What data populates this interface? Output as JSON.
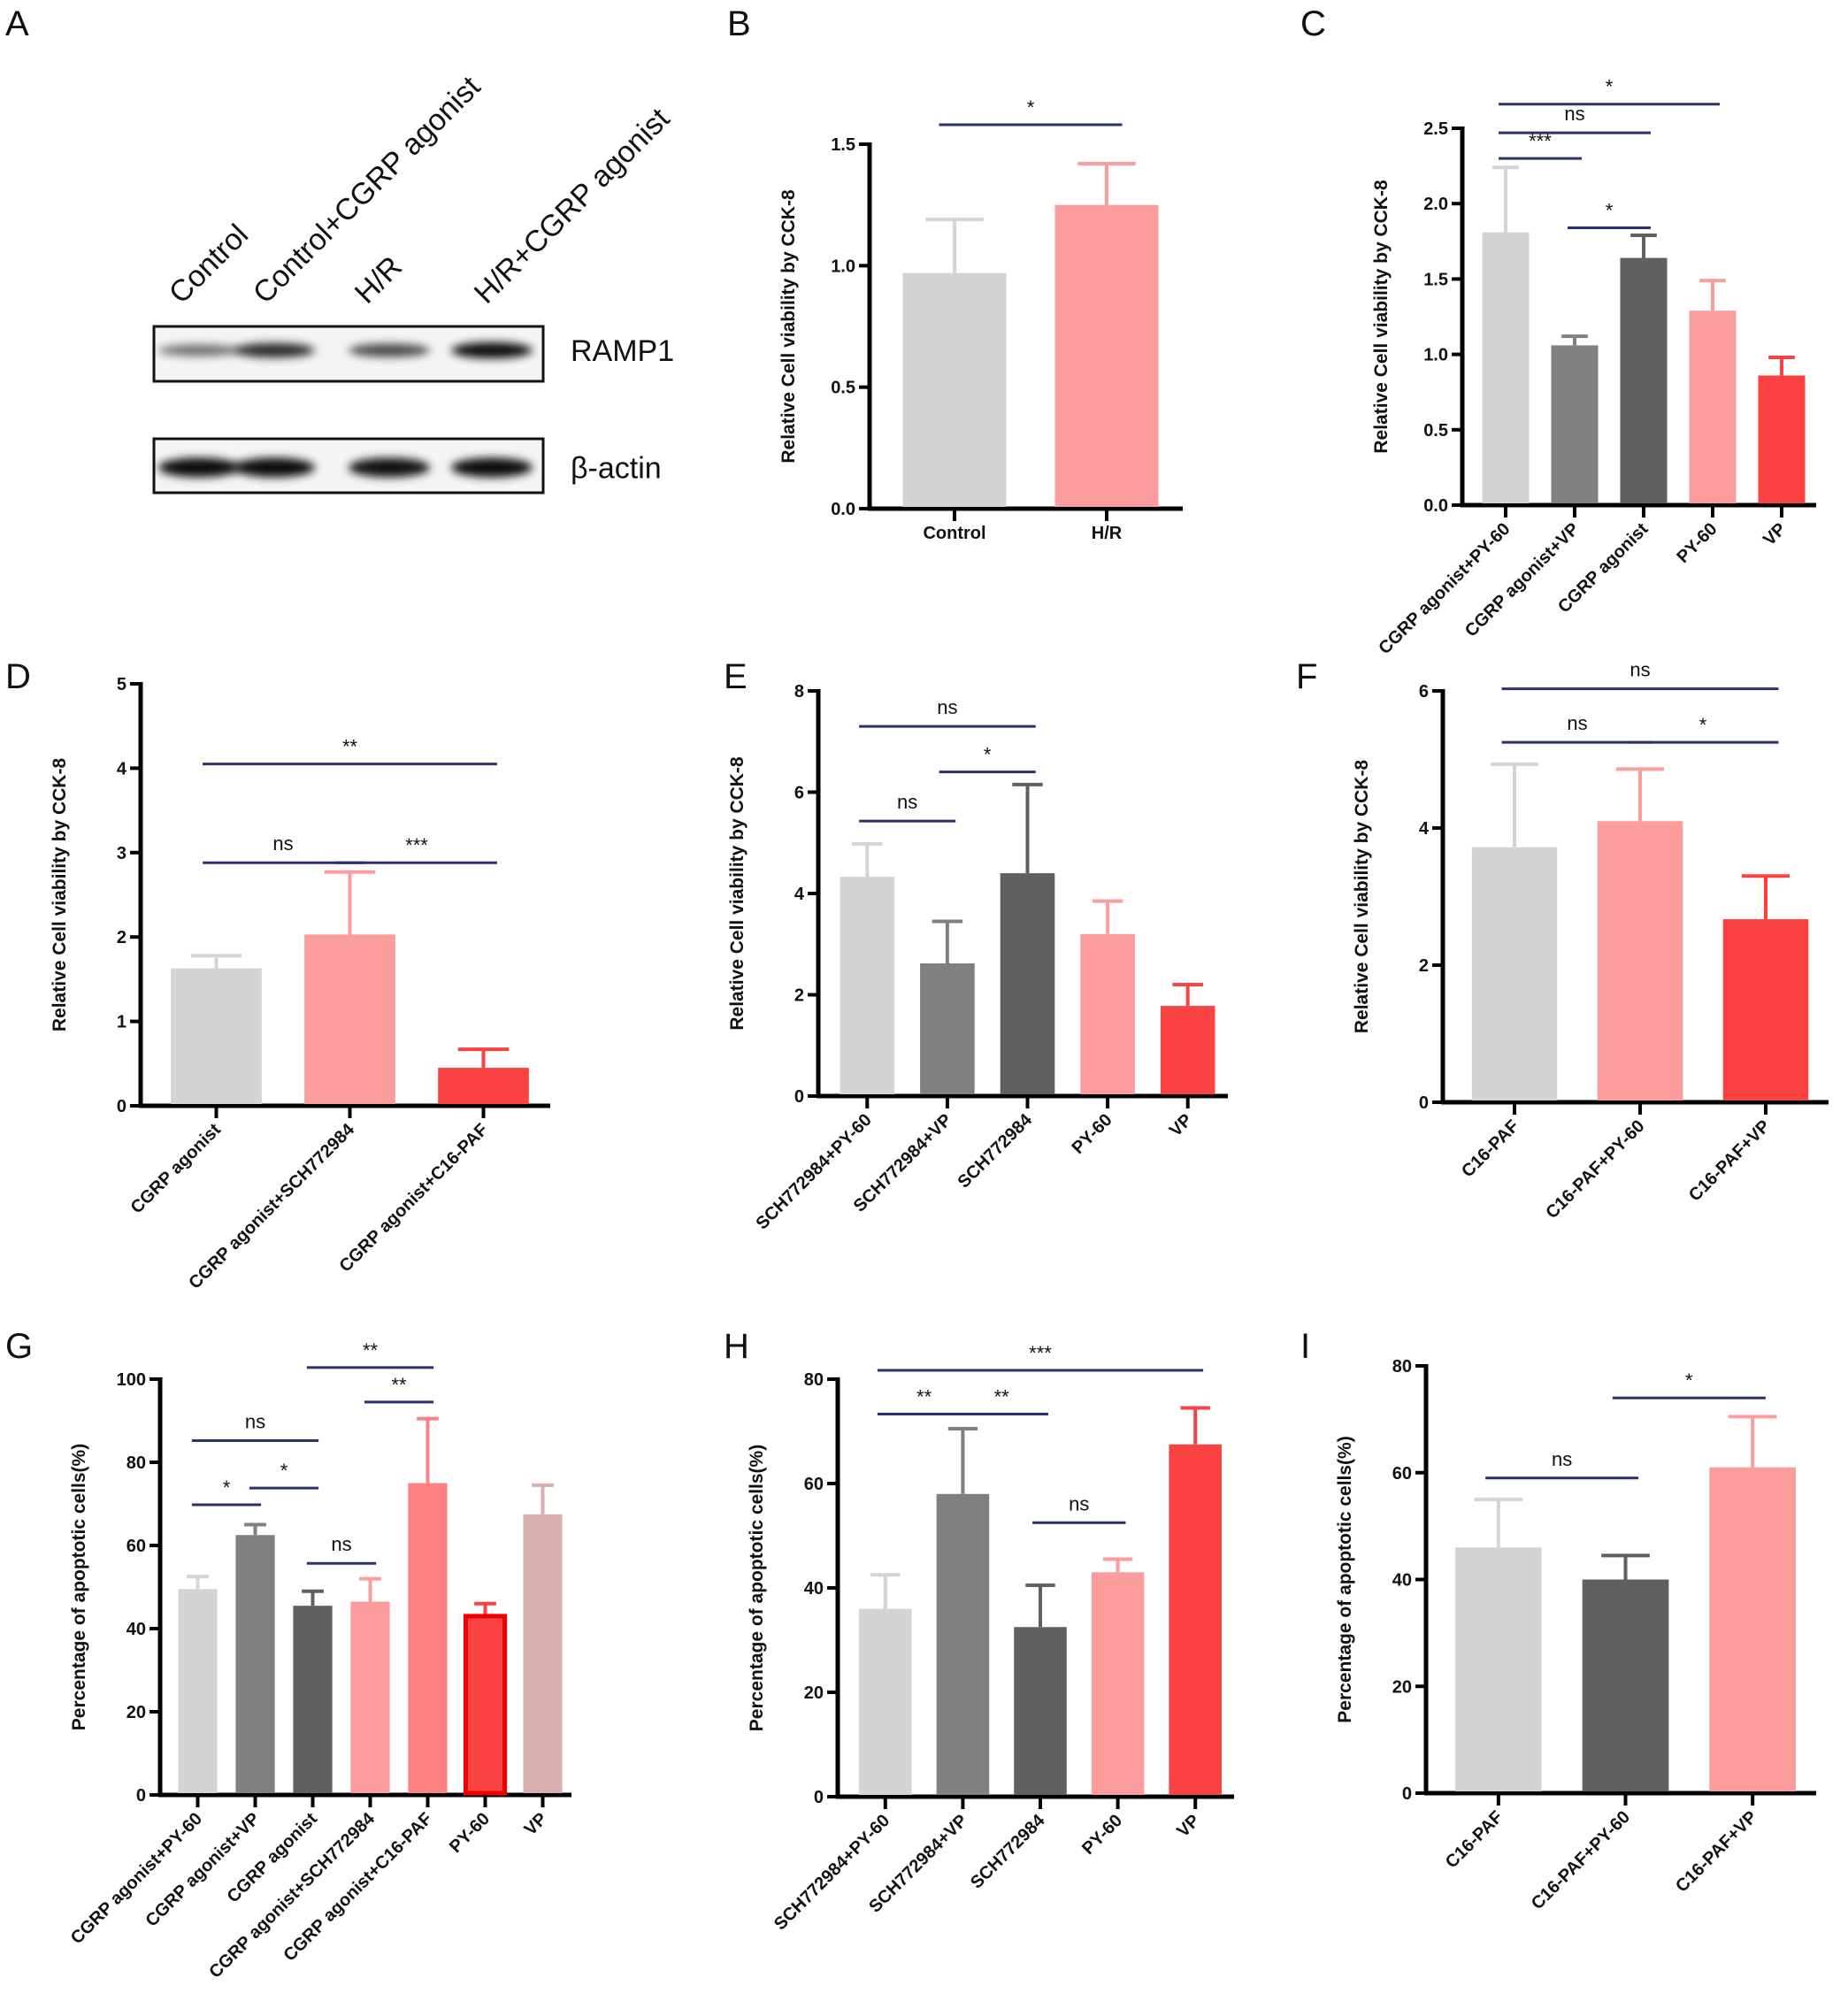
{
  "colors": {
    "light_gray": "#d4d4d4",
    "gray": "#808080",
    "dark_gray": "#606060",
    "pink": "#fc9d9d",
    "red": "#fb4242",
    "salmon": "#fe8080",
    "dusty_rose": "#d8afaf",
    "bracket": "#2b2f6b"
  },
  "panel_a": {
    "letter": "A",
    "lanes": [
      "Control",
      "Control+CGRP agonist",
      "H/R",
      "H/R+CGRP agonist"
    ],
    "blots": [
      {
        "label": "RAMP1",
        "band_intensity": [
          0.35,
          0.8,
          0.6,
          1.0
        ]
      },
      {
        "label": "β-actin",
        "band_intensity": [
          1.0,
          1.0,
          0.95,
          1.0
        ]
      }
    ]
  },
  "chart_data": [
    {
      "panel": "B",
      "type": "bar",
      "ylabel": "Relative Cell viability by CCK-8",
      "ylim": [
        0,
        1.5
      ],
      "yticks": [
        "0.0",
        "0.5",
        "1.0",
        "1.5"
      ],
      "rotate_labels": false,
      "categories": [
        "Control",
        "H/R"
      ],
      "values": [
        0.97,
        1.25
      ],
      "error_top": [
        1.19,
        1.42
      ],
      "colors": [
        "light_gray",
        "pink"
      ],
      "significance": [
        {
          "from": 0,
          "to": 1,
          "label": "*",
          "y": 1.58
        }
      ]
    },
    {
      "panel": "C",
      "type": "bar",
      "ylabel": "Relative Cell viability by CCK-8",
      "ylim": [
        0,
        2.5
      ],
      "yticks": [
        "0.0",
        "0.5",
        "1.0",
        "1.5",
        "2.0",
        "2.5"
      ],
      "rotate_labels": true,
      "categories": [
        "CGRP agonist+PY-60",
        "CGRP agonist+VP",
        "CGRP agonist",
        "PY-60",
        "VP"
      ],
      "values": [
        1.81,
        1.06,
        1.64,
        1.29,
        0.86
      ],
      "error_top": [
        2.24,
        1.12,
        1.79,
        1.49,
        0.98
      ],
      "colors": [
        "light_gray",
        "gray",
        "dark_gray",
        "pink",
        "red"
      ],
      "significance": [
        {
          "from": 0,
          "to": 3,
          "label": "*",
          "y": 2.66
        },
        {
          "from": 0,
          "to": 2,
          "label": "ns",
          "y": 2.47
        },
        {
          "from": 0,
          "to": 1,
          "label": "***",
          "y": 2.3
        },
        {
          "from": 1,
          "to": 2,
          "label": "*",
          "y": 1.84
        }
      ]
    },
    {
      "panel": "D",
      "type": "bar",
      "ylabel": "Relative Cell viability by CCK-8",
      "ylim": [
        0,
        5
      ],
      "yticks": [
        "0",
        "1",
        "2",
        "3",
        "4",
        "5"
      ],
      "rotate_labels": true,
      "categories": [
        "CGRP agonist",
        "CGRP agonist+SCH772984",
        "CGRP agonist+C16-PAF"
      ],
      "values": [
        1.63,
        2.03,
        0.45
      ],
      "error_top": [
        1.78,
        2.77,
        0.67
      ],
      "colors": [
        "light_gray",
        "pink",
        "red"
      ],
      "significance": [
        {
          "from": 0,
          "to": 2,
          "label": "**",
          "y": 4.05
        },
        {
          "from": 0,
          "to": 1,
          "label": "ns",
          "y": 2.88
        },
        {
          "from": 1,
          "to": 2,
          "label": "***",
          "y": 2.88
        }
      ]
    },
    {
      "panel": "E",
      "type": "bar",
      "ylabel": "Relative Cell viability by CCK-8",
      "ylim": [
        0,
        8
      ],
      "yticks": [
        "0",
        "2",
        "4",
        "6",
        "8"
      ],
      "rotate_labels": true,
      "categories": [
        "SCH772984+PY-60",
        "SCH772984+VP",
        "SCH772984",
        "PY-60",
        "VP"
      ],
      "values": [
        4.33,
        2.62,
        4.4,
        3.2,
        1.78
      ],
      "error_top": [
        4.98,
        3.45,
        6.15,
        3.85,
        2.2
      ],
      "colors": [
        "light_gray",
        "gray",
        "dark_gray",
        "pink",
        "red"
      ],
      "significance": [
        {
          "from": 0,
          "to": 2,
          "label": "ns",
          "y": 7.3
        },
        {
          "from": 1,
          "to": 2,
          "label": "*",
          "y": 6.4
        },
        {
          "from": 0,
          "to": 1,
          "label": "ns",
          "y": 5.43
        }
      ]
    },
    {
      "panel": "F",
      "type": "bar",
      "ylabel": "Relative Cell viability by CCK-8",
      "ylim": [
        0,
        6
      ],
      "yticks": [
        "0",
        "2",
        "4",
        "6"
      ],
      "rotate_labels": true,
      "categories": [
        "C16-PAF",
        "C16-PAF+PY-60",
        "C16-PAF+VP"
      ],
      "values": [
        3.72,
        4.1,
        2.67
      ],
      "error_top": [
        4.93,
        4.86,
        3.3
      ],
      "colors": [
        "light_gray",
        "pink",
        "red"
      ],
      "significance": [
        {
          "from": 0,
          "to": 2,
          "label": "ns",
          "y": 6.03
        },
        {
          "from": 0,
          "to": 1,
          "label": "ns",
          "y": 5.25
        },
        {
          "from": 1,
          "to": 2,
          "label": "*",
          "y": 5.25
        }
      ]
    },
    {
      "panel": "G",
      "type": "bar",
      "ylabel": "Percentage of apoptotic cells(%)",
      "ylim": [
        0,
        100
      ],
      "yticks": [
        "0",
        "20",
        "40",
        "60",
        "80",
        "100"
      ],
      "rotate_labels": true,
      "categories": [
        "CGRP agonist+PY-60",
        "CGRP agonist+VP",
        "CGRP agonist",
        "CGRP agonist+SCH772984",
        "CGRP agonist+C16-PAF",
        "PY-60",
        "VP"
      ],
      "values": [
        49.5,
        62.5,
        45.5,
        46.5,
        75,
        43,
        67.5
      ],
      "error_top": [
        52.5,
        65,
        49,
        52,
        90.5,
        46,
        74.5
      ],
      "colors": [
        "light_gray",
        "gray",
        "dark_gray",
        "pink",
        "salmon",
        "red",
        "dusty_rose"
      ],
      "outlined": [
        5
      ],
      "significance": [
        {
          "from": 2,
          "to": 4,
          "label": "**",
          "y": 102.8
        },
        {
          "from": 3,
          "to": 4,
          "label": "**",
          "y": 94.5
        },
        {
          "from": 0,
          "to": 2,
          "label": "ns",
          "y": 85.2
        },
        {
          "from": 1,
          "to": 2,
          "label": "*",
          "y": 73.8
        },
        {
          "from": 0,
          "to": 1,
          "label": "*",
          "y": 69.8
        },
        {
          "from": 2,
          "to": 3,
          "label": "ns",
          "y": 55.7
        }
      ]
    },
    {
      "panel": "H",
      "type": "bar",
      "ylabel": "Percentage of apoptotic cells(%)",
      "ylim": [
        0,
        80
      ],
      "yticks": [
        "0",
        "20",
        "40",
        "60",
        "80"
      ],
      "rotate_labels": true,
      "categories": [
        "SCH772984+PY-60",
        "SCH772984+VP",
        "SCH772984",
        "PY-60",
        "VP"
      ],
      "values": [
        36,
        58,
        32.5,
        43,
        67.5
      ],
      "error_top": [
        42.5,
        70.5,
        40.5,
        45.5,
        74.5
      ],
      "colors": [
        "light_gray",
        "gray",
        "dark_gray",
        "pink",
        "red"
      ],
      "significance": [
        {
          "from": 0,
          "to": 4,
          "label": "***",
          "y": 81.7
        },
        {
          "from": 0,
          "to": 1,
          "label": "**",
          "y": 73.3
        },
        {
          "from": 1,
          "to": 2,
          "label": "**",
          "y": 73.3
        },
        {
          "from": 2,
          "to": 3,
          "label": "ns",
          "y": 52.5
        }
      ]
    },
    {
      "panel": "I",
      "type": "bar",
      "ylabel": "Percentage of apoptotic cells(%)",
      "ylim": [
        0,
        80
      ],
      "yticks": [
        "0",
        "20",
        "40",
        "60",
        "80"
      ],
      "rotate_labels": true,
      "categories": [
        "C16-PAF",
        "C16-PAF+PY-60",
        "C16-PAF+VP"
      ],
      "values": [
        46,
        40,
        61
      ],
      "error_top": [
        55,
        44.5,
        70.5
      ],
      "colors": [
        "light_gray",
        "dark_gray",
        "pink"
      ],
      "significance": [
        {
          "from": 1,
          "to": 2,
          "label": "*",
          "y": 74
        },
        {
          "from": 0,
          "to": 1,
          "label": "ns",
          "y": 59
        }
      ]
    }
  ]
}
